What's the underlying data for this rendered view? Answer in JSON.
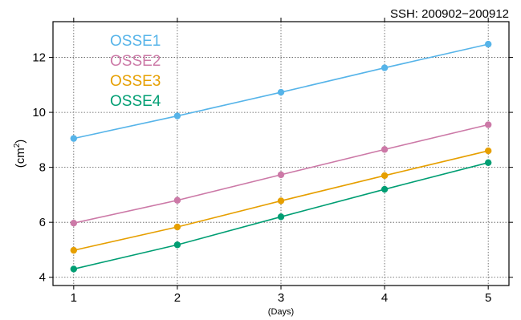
{
  "chart_data": {
    "type": "line",
    "title": "SSH: 200902−200912",
    "xlabel": "(Days)",
    "ylabel_main": "(cm",
    "ylabel_sup": "2",
    "ylabel_close": ")",
    "x": [
      1,
      2,
      3,
      4,
      5
    ],
    "xlim": [
      0.8,
      5.2
    ],
    "ylim": [
      3.7,
      13.3
    ],
    "xticks": [
      1,
      2,
      3,
      4,
      5
    ],
    "yticks": [
      4,
      6,
      8,
      10,
      12
    ],
    "grid": true,
    "legend_position": "top-left",
    "series": [
      {
        "name": "OSSE1",
        "color": "#56B4E9",
        "values": [
          9.05,
          9.87,
          10.73,
          11.62,
          12.48
        ]
      },
      {
        "name": "OSSE2",
        "color": "#CC79A7",
        "values": [
          5.97,
          6.8,
          7.73,
          8.65,
          9.55
        ]
      },
      {
        "name": "OSSE3",
        "color": "#E69F00",
        "values": [
          4.98,
          5.83,
          6.78,
          7.7,
          8.6
        ]
      },
      {
        "name": "OSSE4",
        "color": "#009E73",
        "values": [
          4.3,
          5.18,
          6.2,
          7.2,
          8.17
        ]
      }
    ]
  }
}
